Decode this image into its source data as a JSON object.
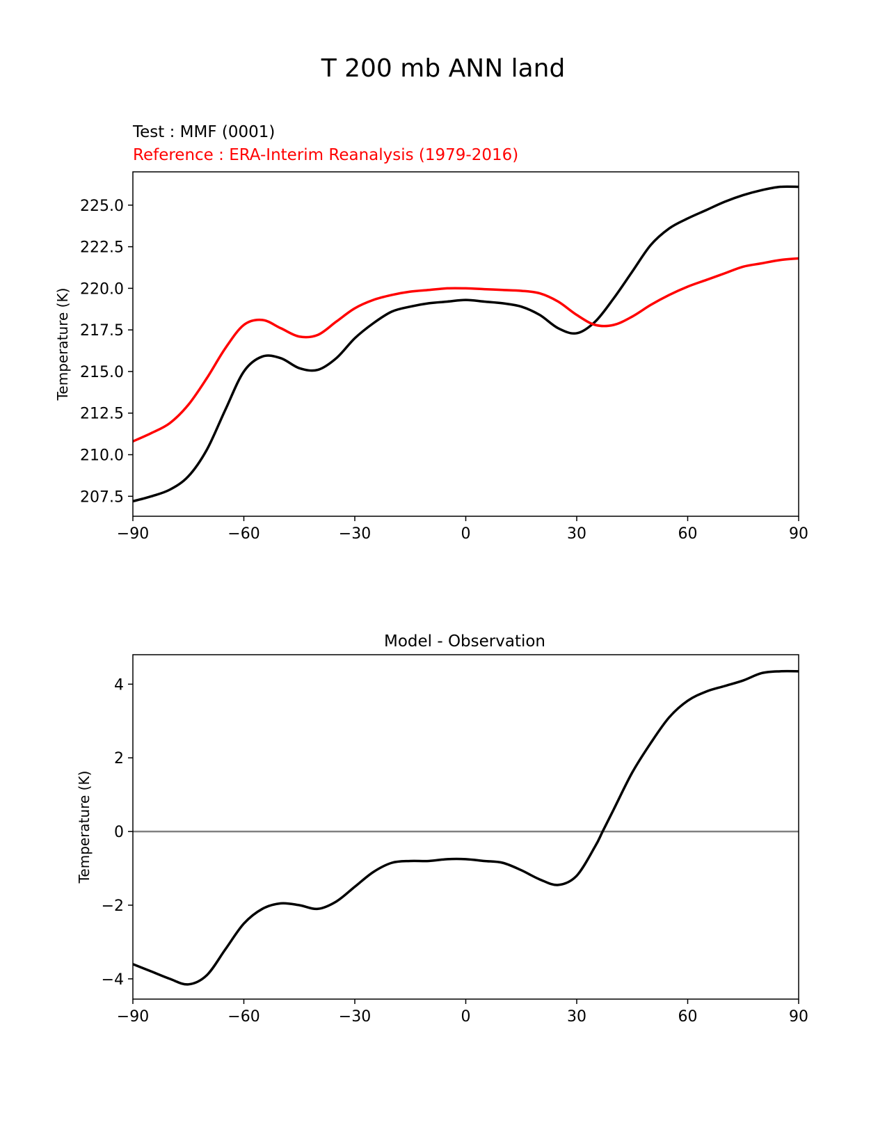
{
  "figure": {
    "title": "T 200 mb ANN land",
    "test_label": "Test : MMF (0001)",
    "reference_label": "Reference : ERA-Interim Reanalysis (1979-2016)",
    "colors": {
      "test": "#000000",
      "reference": "#ff0000",
      "zero_line": "#808080",
      "axes": "#000000"
    }
  },
  "chart_data": [
    {
      "type": "line",
      "title": "",
      "xlabel": "",
      "ylabel": "Temperature (K)",
      "xlim": [
        -90,
        90
      ],
      "ylim": [
        206.3,
        227.0
      ],
      "xticks": [
        -90,
        -60,
        -30,
        0,
        30,
        60,
        90
      ],
      "xtick_labels": [
        "−90",
        "−60",
        "−30",
        "0",
        "30",
        "60",
        "90"
      ],
      "yticks": [
        207.5,
        210.0,
        212.5,
        215.0,
        217.5,
        220.0,
        222.5,
        225.0
      ],
      "ytick_labels": [
        "207.5",
        "210.0",
        "212.5",
        "215.0",
        "217.5",
        "220.0",
        "222.5",
        "225.0"
      ],
      "grid": false,
      "series": [
        {
          "name": "Test : MMF (0001)",
          "color": "#000000",
          "x": [
            -90,
            -85,
            -80,
            -75,
            -70,
            -65,
            -60,
            -55,
            -50,
            -45,
            -40,
            -35,
            -30,
            -25,
            -20,
            -15,
            -10,
            -5,
            0,
            5,
            10,
            15,
            20,
            25,
            30,
            35,
            40,
            45,
            50,
            55,
            60,
            65,
            70,
            75,
            80,
            85,
            90
          ],
          "y": [
            207.2,
            207.5,
            207.9,
            208.7,
            210.3,
            212.7,
            215.0,
            215.9,
            215.8,
            215.2,
            215.1,
            215.8,
            217.0,
            217.9,
            218.6,
            218.9,
            219.1,
            219.2,
            219.3,
            219.2,
            219.1,
            218.9,
            218.4,
            217.6,
            217.3,
            218.0,
            219.4,
            221.0,
            222.6,
            223.6,
            224.2,
            224.7,
            225.2,
            225.6,
            225.9,
            226.1,
            226.1
          ]
        },
        {
          "name": "Reference : ERA-Interim Reanalysis (1979-2016)",
          "color": "#ff0000",
          "x": [
            -90,
            -85,
            -80,
            -75,
            -70,
            -65,
            -60,
            -55,
            -50,
            -45,
            -40,
            -35,
            -30,
            -25,
            -20,
            -15,
            -10,
            -5,
            0,
            5,
            10,
            15,
            20,
            25,
            30,
            35,
            40,
            45,
            50,
            55,
            60,
            65,
            70,
            75,
            80,
            85,
            90
          ],
          "y": [
            210.8,
            211.3,
            211.9,
            213.0,
            214.6,
            216.4,
            217.8,
            218.1,
            217.6,
            217.1,
            217.2,
            218.0,
            218.8,
            219.3,
            219.6,
            219.8,
            219.9,
            220.0,
            220.0,
            219.95,
            219.9,
            219.85,
            219.7,
            219.2,
            218.4,
            217.8,
            217.8,
            218.3,
            219.0,
            219.6,
            220.1,
            220.5,
            220.9,
            221.3,
            221.5,
            221.7,
            221.8
          ]
        }
      ]
    },
    {
      "type": "line",
      "title": "Model - Observation",
      "xlabel": "",
      "ylabel": "Temperature (K)",
      "xlim": [
        -90,
        90
      ],
      "ylim": [
        -4.55,
        4.8
      ],
      "xticks": [
        -90,
        -60,
        -30,
        0,
        30,
        60,
        90
      ],
      "xtick_labels": [
        "−90",
        "−60",
        "−30",
        "0",
        "30",
        "60",
        "90"
      ],
      "yticks": [
        -4,
        -2,
        0,
        2,
        4
      ],
      "ytick_labels": [
        "−4",
        "−2",
        "0",
        "2",
        "4"
      ],
      "grid": false,
      "zero_line": 0,
      "series": [
        {
          "color": "#000000",
          "x": [
            -90,
            -85,
            -80,
            -75,
            -70,
            -65,
            -60,
            -55,
            -50,
            -45,
            -40,
            -35,
            -30,
            -25,
            -20,
            -15,
            -10,
            -5,
            0,
            5,
            10,
            15,
            20,
            25,
            30,
            35,
            37,
            40,
            45,
            50,
            55,
            60,
            65,
            70,
            75,
            80,
            85,
            90
          ],
          "y": [
            -3.6,
            -3.8,
            -4.0,
            -4.15,
            -3.9,
            -3.2,
            -2.5,
            -2.1,
            -1.95,
            -2.0,
            -2.1,
            -1.9,
            -1.5,
            -1.1,
            -0.85,
            -0.8,
            -0.8,
            -0.75,
            -0.75,
            -0.8,
            -0.85,
            -1.05,
            -1.3,
            -1.45,
            -1.2,
            -0.4,
            0.0,
            0.6,
            1.6,
            2.4,
            3.1,
            3.55,
            3.8,
            3.95,
            4.1,
            4.3,
            4.35,
            4.35
          ]
        }
      ]
    }
  ]
}
